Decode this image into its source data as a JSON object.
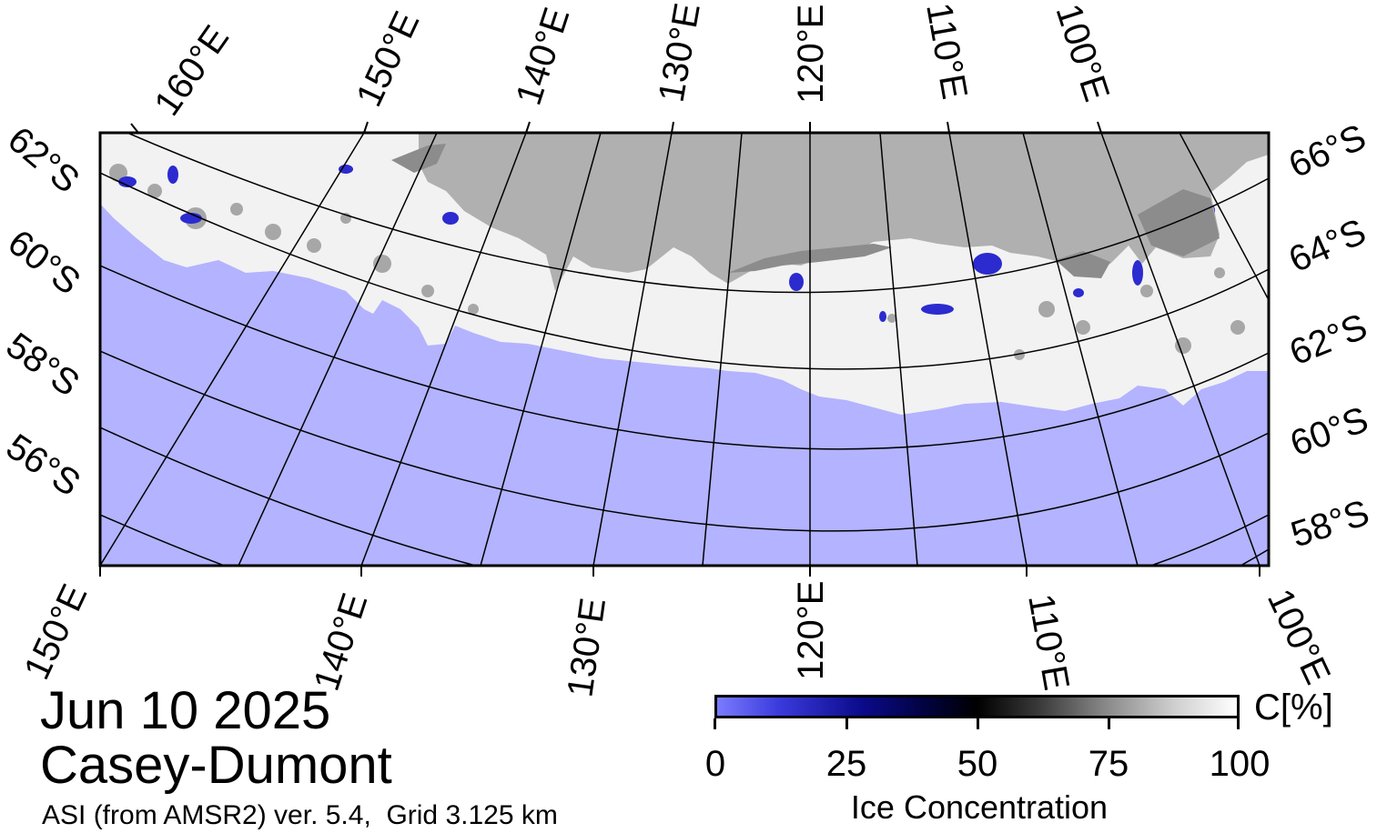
{
  "map": {
    "colors": {
      "ocean": "#b3b3ff",
      "land": "#b0b0b0",
      "ice_shelf": "#8c8c8c",
      "sea_ice": "#f2f2f2",
      "low_concentration": "#3a3ae0",
      "graticule": "#000000"
    },
    "top_labels": [
      "160°E",
      "150°E",
      "140°E",
      "130°E",
      "120°E",
      "110°E",
      "100°E"
    ],
    "bottom_labels": [
      "150°E",
      "140°E",
      "130°E",
      "120°E",
      "110°E",
      "100°E"
    ],
    "left_labels": [
      "62°S",
      "60°S",
      "58°S",
      "56°S"
    ],
    "right_labels": [
      "66°S",
      "64°S",
      "62°S",
      "60°S",
      "58°S"
    ]
  },
  "caption": {
    "date": "Jun 10 2025",
    "region": "Casey-Dumont",
    "product": "ASI (from AMSR2) ver. 5.4,  Grid 3.125 km"
  },
  "colorbar": {
    "unit": "C[%]",
    "ticks": [
      "0",
      "25",
      "50",
      "75",
      "100"
    ],
    "tick_values": [
      0,
      25,
      50,
      75,
      100
    ],
    "title": "Ice Concentration"
  }
}
